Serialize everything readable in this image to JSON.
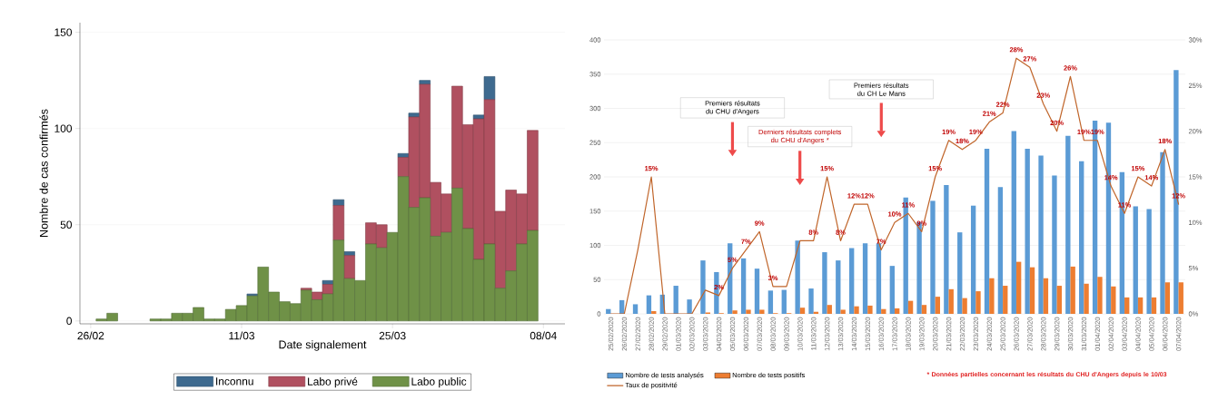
{
  "chart_data": [
    {
      "type": "bar",
      "stacked": true,
      "xlabel": "Date signalement",
      "ylabel": "Nombre de cas confirmés",
      "x": [
        "2020-02-27",
        "2020-02-28",
        "2020-02-29",
        "2020-03-01",
        "2020-03-02",
        "2020-03-03",
        "2020-03-04",
        "2020-03-05",
        "2020-03-06",
        "2020-03-07",
        "2020-03-08",
        "2020-03-09",
        "2020-03-10",
        "2020-03-11",
        "2020-03-12",
        "2020-03-13",
        "2020-03-14",
        "2020-03-15",
        "2020-03-16",
        "2020-03-17",
        "2020-03-18",
        "2020-03-19",
        "2020-03-20",
        "2020-03-21",
        "2020-03-22",
        "2020-03-23",
        "2020-03-24",
        "2020-03-25",
        "2020-03-26",
        "2020-03-27",
        "2020-03-28",
        "2020-03-29",
        "2020-03-30",
        "2020-03-31",
        "2020-04-01",
        "2020-04-02",
        "2020-04-03",
        "2020-04-04",
        "2020-04-05",
        "2020-04-06",
        "2020-04-07"
      ],
      "series": [
        {
          "name": "Labo public",
          "color": "#6f9147",
          "values": [
            1,
            4,
            0,
            0,
            0,
            1,
            1,
            4,
            4,
            7,
            1,
            1,
            6,
            8,
            13,
            28,
            15,
            10,
            9,
            16,
            11,
            14,
            42,
            22,
            21,
            40,
            38,
            46,
            75,
            59,
            64,
            44,
            46,
            69,
            48,
            32,
            40,
            17,
            26,
            40,
            47
          ]
        },
        {
          "name": "Labo privé",
          "color": "#b05060",
          "values": [
            0,
            0,
            0,
            0,
            0,
            0,
            0,
            0,
            0,
            0,
            0,
            0,
            0,
            0,
            0,
            0,
            0,
            0,
            0,
            1,
            4,
            5,
            18,
            12,
            0,
            11,
            12,
            0,
            10,
            47,
            59,
            28,
            20,
            53,
            54,
            73,
            75,
            40,
            42,
            26,
            52
          ]
        },
        {
          "name": "Inconnu",
          "color": "#3e6a8f",
          "values": [
            0,
            0,
            0,
            0,
            0,
            0,
            0,
            0,
            0,
            0,
            0,
            0,
            0,
            0,
            1,
            0,
            0,
            0,
            0,
            0,
            0,
            2,
            3,
            2,
            0,
            0,
            0,
            0,
            2,
            2,
            2,
            0,
            0,
            0,
            0,
            2,
            12,
            0,
            0,
            0,
            0
          ]
        }
      ],
      "xlim": [
        "2020-02-25",
        "2020-04-10"
      ],
      "xticks": [
        {
          "value": "2020-02-26",
          "label": "26/02"
        },
        {
          "value": "2020-03-11",
          "label": "11/03"
        },
        {
          "value": "2020-03-25",
          "label": "25/03"
        },
        {
          "value": "2020-04-08",
          "label": "08/04"
        }
      ],
      "ylim": [
        -1.5,
        155
      ],
      "yticks": [
        0,
        50,
        100,
        150
      ],
      "grid": "y",
      "legend": "bottom"
    },
    {
      "type": "bar",
      "categories": [
        "25/02/2020",
        "26/02/2020",
        "27/02/2020",
        "28/02/2020",
        "29/02/2020",
        "01/03/2020",
        "02/03/2020",
        "03/03/2020",
        "04/03/2020",
        "05/03/2020",
        "06/03/2020",
        "07/03/2020",
        "08/03/2020",
        "09/03/2020",
        "10/03/2020",
        "11/03/2020",
        "12/03/2020",
        "13/03/2020",
        "14/03/2020",
        "15/03/2020",
        "16/03/2020",
        "17/03/2020",
        "18/03/2020",
        "19/03/2020",
        "20/03/2020",
        "21/03/2020",
        "22/03/2020",
        "23/03/2020",
        "24/03/2020",
        "25/03/2020",
        "26/03/2020",
        "27/03/2020",
        "28/03/2020",
        "29/03/2020",
        "30/03/2020",
        "31/03/2020",
        "01/04/2020",
        "02/04/2020",
        "03/04/2020",
        "04/04/2020",
        "05/04/2020",
        "06/04/2020",
        "07/04/2020"
      ],
      "series": [
        {
          "name": "Nombre de tests analysés",
          "color": "#5b9bd5",
          "values": [
            7,
            20,
            14,
            27,
            28,
            41,
            21,
            78,
            61,
            103,
            81,
            66,
            34,
            35,
            107,
            37,
            90,
            78,
            96,
            103,
            103,
            70,
            170,
            134,
            165,
            188,
            119,
            158,
            241,
            185,
            267,
            241,
            231,
            202,
            260,
            223,
            282,
            279,
            207,
            157,
            153,
            236,
            356
          ]
        },
        {
          "name": "Nombre de tests positifs",
          "color": "#ed7d31",
          "values": [
            0,
            0,
            0,
            4,
            0,
            0,
            0,
            2,
            1,
            5,
            6,
            6,
            1,
            1,
            9,
            3,
            13,
            6,
            11,
            12,
            7,
            8,
            19,
            13,
            25,
            36,
            23,
            33,
            52,
            41,
            76,
            68,
            52,
            41,
            69,
            44,
            54,
            40,
            24,
            24,
            24,
            46,
            46
          ]
        },
        {
          "name": "Taux de positivité",
          "type": "line",
          "axis": "y2",
          "color": "#c0652a",
          "values": [
            0,
            0,
            7,
            15,
            0,
            0,
            0,
            2.6,
            2,
            5,
            7,
            9,
            3,
            3,
            8,
            8,
            15,
            8,
            12,
            12,
            7,
            10,
            11,
            9,
            15,
            19,
            18,
            19,
            21,
            22,
            28,
            27,
            23,
            20,
            26,
            19,
            19,
            14,
            11,
            15,
            14,
            18,
            12
          ],
          "value_labels": [
            null,
            null,
            null,
            "15%",
            null,
            null,
            null,
            null,
            "2%",
            "5%",
            "7%",
            "9%",
            "3%",
            null,
            null,
            "8%",
            "15%",
            "8%",
            "12%",
            "12%",
            "7%",
            "10%",
            "11%",
            "9%",
            "15%",
            "19%",
            "18%",
            "19%",
            "21%",
            "22%",
            "28%",
            "27%",
            "23%",
            "20%",
            "26%",
            "19%",
            "19%",
            "14%",
            "11%",
            "15%",
            "14%",
            "18%",
            "12%"
          ]
        }
      ],
      "ylim": [
        0,
        400
      ],
      "yticks": [
        0,
        50,
        100,
        150,
        200,
        250,
        300,
        350,
        400
      ],
      "y2lim": [
        0,
        30
      ],
      "y2ticks": [
        {
          "value": 0,
          "label": "0%"
        },
        {
          "value": 5,
          "label": "5%"
        },
        {
          "value": 10,
          "label": "10%"
        },
        {
          "value": 15,
          "label": "15%"
        },
        {
          "value": 20,
          "label": "20%"
        },
        {
          "value": 25,
          "label": "25%"
        },
        {
          "value": 30,
          "label": "30%"
        }
      ],
      "grid": "y",
      "legend": "bottom",
      "annotations": [
        "Premiers résultats du CHU d'Angers",
        "Derniers résultats complets du CHU d'Angers *",
        "Premiers résultats du CH Le Mans",
        "* Données partielles concernant les résultats du CHU d'Angers depuis le 10/03"
      ]
    }
  ]
}
